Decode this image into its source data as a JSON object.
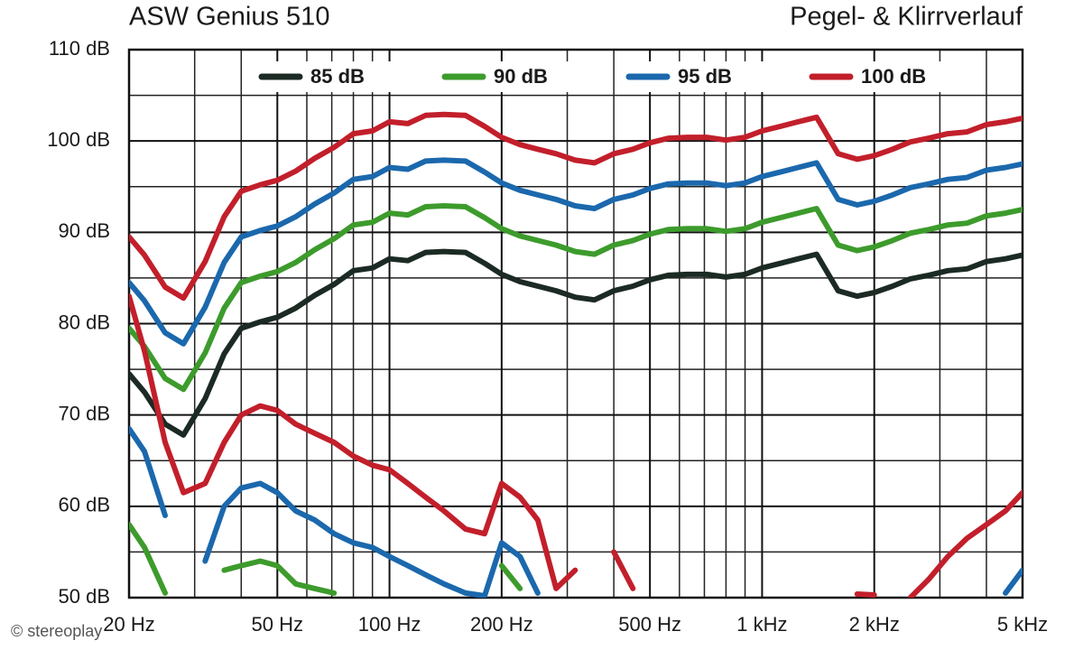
{
  "chart_data": {
    "type": "line",
    "title": "ASW Genius 510",
    "subtitle": "Pegel- & Klirrverlauf",
    "watermark": "© stereoplay",
    "log_x": true,
    "grid": true,
    "legend": "top",
    "xlim": [
      20,
      5000
    ],
    "ylim": [
      50,
      110
    ],
    "xticks": [
      {
        "value": 20,
        "label": "20 Hz"
      },
      {
        "value": 50,
        "label": "50 Hz"
      },
      {
        "value": 100,
        "label": "100 Hz"
      },
      {
        "value": 200,
        "label": "200 Hz"
      },
      {
        "value": 500,
        "label": "500 Hz"
      },
      {
        "value": 1000,
        "label": "1 kHz"
      },
      {
        "value": 2000,
        "label": "2 kHz"
      },
      {
        "value": 5000,
        "label": "5 kHz"
      }
    ],
    "yticks": [
      {
        "value": 50,
        "label": "50 dB"
      },
      {
        "value": 60,
        "label": "60 dB"
      },
      {
        "value": 70,
        "label": "70 dB"
      },
      {
        "value": 80,
        "label": "80 dB"
      },
      {
        "value": 90,
        "label": "90 dB"
      },
      {
        "value": 100,
        "label": "100 dB"
      },
      {
        "value": 110,
        "label": "110 dB"
      }
    ],
    "xgrid": [
      30,
      40,
      60,
      70,
      80,
      90,
      300,
      400,
      600,
      700,
      800,
      900,
      3000,
      4000
    ],
    "ygrid": [
      55,
      65,
      75,
      85,
      95,
      105
    ],
    "x": [
      20,
      22,
      25,
      28,
      32,
      36,
      40,
      45,
      50,
      56,
      63,
      71,
      80,
      90,
      100,
      112,
      125,
      140,
      160,
      180,
      200,
      224,
      250,
      280,
      315,
      355,
      400,
      450,
      500,
      560,
      630,
      710,
      800,
      900,
      1000,
      1120,
      1250,
      1400,
      1600,
      1800,
      2000,
      2240,
      2500,
      2800,
      3150,
      3550,
      4000,
      4500,
      5000
    ],
    "series": [
      {
        "name": "85 dB",
        "color": "#1c2a24",
        "values": [
          74.5,
          72.5,
          69,
          67.8,
          71.8,
          76.7,
          79.5,
          80.2,
          80.7,
          81.7,
          83.1,
          84.3,
          85.8,
          86.1,
          87.1,
          86.9,
          87.8,
          87.9,
          87.8,
          86.6,
          85.4,
          84.6,
          84.1,
          83.6,
          82.9,
          82.6,
          83.6,
          84.1,
          84.8,
          85.3,
          85.4,
          85.4,
          85.1,
          85.4,
          86.1,
          86.6,
          87.1,
          87.6,
          83.6,
          83,
          83.4,
          84.1,
          84.9,
          85.3,
          85.8,
          86,
          86.8,
          87.1,
          87.5
        ]
      },
      {
        "name": "90 dB",
        "color": "#3d9b2c",
        "values": [
          79.5,
          77.5,
          74,
          72.8,
          76.8,
          81.7,
          84.5,
          85.2,
          85.7,
          86.7,
          88.1,
          89.3,
          90.8,
          91.1,
          92.1,
          91.9,
          92.8,
          92.9,
          92.8,
          91.6,
          90.4,
          89.6,
          89.1,
          88.6,
          87.9,
          87.6,
          88.6,
          89.1,
          89.8,
          90.3,
          90.4,
          90.4,
          90.1,
          90.4,
          91.1,
          91.6,
          92.1,
          92.6,
          88.6,
          88,
          88.4,
          89.1,
          89.9,
          90.3,
          90.8,
          91,
          91.8,
          92.1,
          92.5
        ],
        "distortion": [
          58,
          55.5,
          50.5,
          null,
          null,
          53,
          53.5,
          54,
          53.5,
          51.5,
          51,
          50.5,
          null,
          null,
          null,
          null,
          null,
          null,
          null,
          null,
          53.5,
          51,
          null,
          null,
          null,
          null,
          null,
          null,
          null,
          null,
          null,
          null,
          null,
          null,
          null,
          null,
          null,
          null,
          null,
          null,
          null,
          null,
          null,
          null,
          null,
          null,
          null,
          null,
          null
        ]
      },
      {
        "name": "95 dB",
        "color": "#1b68ad",
        "values": [
          84.5,
          82.5,
          79,
          77.8,
          81.8,
          86.7,
          89.5,
          90.2,
          90.7,
          91.7,
          93.1,
          94.3,
          95.8,
          96.1,
          97.1,
          96.9,
          97.8,
          97.9,
          97.8,
          96.6,
          95.4,
          94.6,
          94.1,
          93.6,
          92.9,
          92.6,
          93.6,
          94.1,
          94.8,
          95.3,
          95.4,
          95.4,
          95.1,
          95.4,
          96.1,
          96.6,
          97.1,
          97.6,
          93.6,
          93,
          93.4,
          94.1,
          94.9,
          95.3,
          95.8,
          96,
          96.8,
          97.1,
          97.5
        ],
        "distortion": [
          68.5,
          66,
          59,
          null,
          54,
          60,
          62,
          62.5,
          61.5,
          59.5,
          58.5,
          57,
          56,
          55.5,
          54.5,
          53.5,
          52.5,
          51.5,
          50.5,
          50.2,
          56,
          54.5,
          50.5,
          null,
          null,
          null,
          null,
          null,
          null,
          null,
          null,
          null,
          null,
          null,
          null,
          null,
          null,
          null,
          null,
          null,
          null,
          null,
          null,
          null,
          null,
          null,
          null,
          50.5,
          53
        ]
      },
      {
        "name": "100 dB",
        "color": "#c21f2b",
        "values": [
          89.5,
          87.5,
          84,
          82.8,
          86.8,
          91.7,
          94.5,
          95.2,
          95.7,
          96.7,
          98.1,
          99.3,
          100.8,
          101.1,
          102.1,
          101.9,
          102.8,
          102.9,
          102.8,
          101.6,
          100.4,
          99.6,
          99.1,
          98.6,
          97.9,
          97.6,
          98.6,
          99.1,
          99.8,
          100.3,
          100.4,
          100.4,
          100.1,
          100.4,
          101.1,
          101.6,
          102.1,
          102.6,
          98.6,
          98,
          98.4,
          99.1,
          99.9,
          100.3,
          100.8,
          101,
          101.8,
          102.1,
          102.5
        ],
        "distortion": [
          83,
          77,
          67,
          61.5,
          62.5,
          67,
          70,
          71,
          70.5,
          69,
          68,
          67,
          65.5,
          64.5,
          64,
          62.5,
          61,
          59.5,
          57.5,
          57,
          62.5,
          61,
          58.5,
          51,
          53,
          null,
          55,
          51,
          null,
          null,
          null,
          null,
          null,
          null,
          null,
          null,
          null,
          null,
          null,
          50.4,
          50.3,
          null,
          50,
          52,
          54.5,
          56.5,
          58,
          59.5,
          61.5
        ]
      }
    ]
  }
}
